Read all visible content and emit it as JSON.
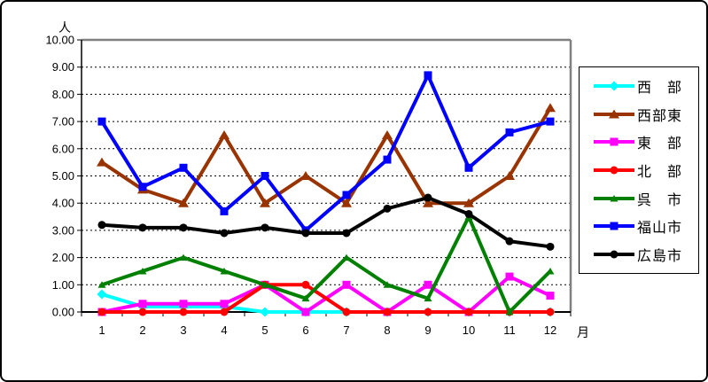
{
  "chart_data": {
    "type": "line",
    "title": "",
    "xlabel": "月",
    "ylabel": "人",
    "x_tick_labels": [
      "1",
      "2",
      "3",
      "4",
      "5",
      "6",
      "7",
      "8",
      "9",
      "10",
      "11",
      "12"
    ],
    "y_tick_labels": [
      "0.00",
      "1.00",
      "2.00",
      "3.00",
      "4.00",
      "5.00",
      "6.00",
      "7.00",
      "8.00",
      "9.00",
      "10.00"
    ],
    "ylim": [
      0,
      10
    ],
    "grid": true,
    "gridline_style": "dashed",
    "legend_position": "right",
    "plot_border_color": "#808080",
    "axis_color": "#000000",
    "background_color": "#ffffff",
    "series": [
      {
        "name": "西　部",
        "color": "#00FFFF",
        "marker": "diamond",
        "values": [
          0.65,
          0.2,
          0.2,
          0.2,
          0.0,
          0.0,
          0.0,
          0.0,
          0.0,
          0.0,
          0.0,
          0.0
        ]
      },
      {
        "name": "西部東",
        "color": "#993300",
        "marker": "triangle",
        "values": [
          5.5,
          4.5,
          4.0,
          6.5,
          4.0,
          5.0,
          4.0,
          6.5,
          4.0,
          4.0,
          5.0,
          7.5
        ]
      },
      {
        "name": "東　部",
        "color": "#FF00FF",
        "marker": "square",
        "values": [
          0.0,
          0.3,
          0.3,
          0.3,
          1.0,
          0.0,
          1.0,
          0.0,
          1.0,
          0.0,
          1.3,
          0.6
        ]
      },
      {
        "name": "北　部",
        "color": "#FF0000",
        "marker": "circle",
        "values": [
          0.0,
          0.0,
          0.0,
          0.0,
          1.0,
          1.0,
          0.0,
          0.0,
          0.0,
          0.0,
          0.0,
          0.0
        ]
      },
      {
        "name": "呉　市",
        "color": "#008000",
        "marker": "triangle-small",
        "values": [
          1.0,
          1.5,
          2.0,
          1.5,
          1.0,
          0.5,
          2.0,
          1.0,
          0.5,
          3.5,
          0.0,
          1.5
        ]
      },
      {
        "name": "福山市",
        "color": "#0000FF",
        "marker": "square",
        "values": [
          7.0,
          4.6,
          5.3,
          3.7,
          5.0,
          3.0,
          4.3,
          5.6,
          8.7,
          5.3,
          6.6,
          7.0
        ]
      },
      {
        "name": "広島市",
        "color": "#000000",
        "marker": "circle",
        "values": [
          3.2,
          3.1,
          3.1,
          2.9,
          3.1,
          2.9,
          2.9,
          3.8,
          4.2,
          3.6,
          2.6,
          2.4
        ]
      }
    ]
  }
}
